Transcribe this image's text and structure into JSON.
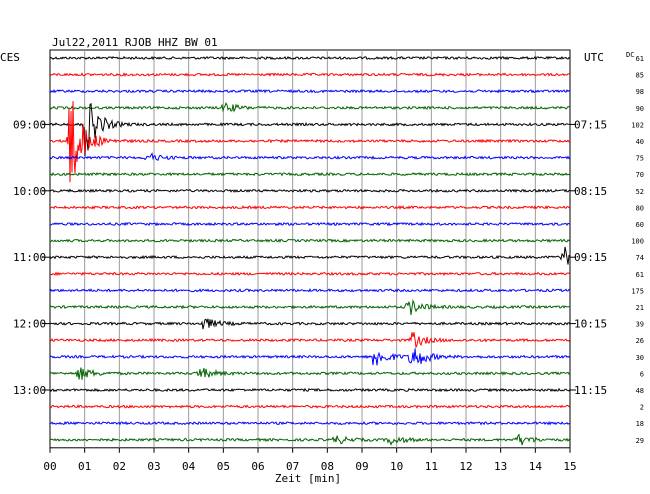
{
  "header": {
    "station_line": "Jul22,2011   RJOB HHZ BW 01",
    "left_zone": "CES",
    "right_zone": "UTC",
    "dc_label": "DC"
  },
  "chart_data": {
    "type": "line",
    "title": "Jul22,2011   RJOB HHZ BW 01",
    "xlabel": "Zeit [min]",
    "ylabel": "",
    "xlim": [
      0,
      15
    ],
    "x_ticks": [
      "00",
      "01",
      "02",
      "03",
      "04",
      "05",
      "06",
      "07",
      "08",
      "09",
      "10",
      "11",
      "12",
      "13",
      "14",
      "15"
    ],
    "grid": true,
    "left_time_labels": [
      {
        "row": 4,
        "text": "09:00"
      },
      {
        "row": 8,
        "text": "10:00"
      },
      {
        "row": 12,
        "text": "11:00"
      },
      {
        "row": 16,
        "text": "12:00"
      },
      {
        "row": 20,
        "text": "13:00"
      }
    ],
    "right_time_labels": [
      {
        "row": 4,
        "text": "07:15"
      },
      {
        "row": 8,
        "text": "08:15"
      },
      {
        "row": 12,
        "text": "09:15"
      },
      {
        "row": 16,
        "text": "10:15"
      },
      {
        "row": 20,
        "text": "11:15"
      }
    ],
    "trace_colors": [
      "#000000",
      "#ff0000",
      "#0000ff",
      "#006400"
    ],
    "dc_offsets": [
      61,
      85,
      98,
      90,
      102,
      40,
      75,
      70,
      52,
      80,
      60,
      100,
      74,
      61,
      175,
      21,
      39,
      26,
      30,
      6,
      48,
      2,
      18,
      29
    ],
    "events": [
      {
        "row": 3,
        "minute": 5.0,
        "amp": 6
      },
      {
        "row": 4,
        "minute": 1.0,
        "amp": 35
      },
      {
        "row": 5,
        "minute": 0.5,
        "amp": 70
      },
      {
        "row": 6,
        "minute": 2.8,
        "amp": 5
      },
      {
        "row": 12,
        "minute": 14.8,
        "amp": 12
      },
      {
        "row": 15,
        "minute": 10.3,
        "amp": 10
      },
      {
        "row": 16,
        "minute": 4.4,
        "amp": 7
      },
      {
        "row": 17,
        "minute": 10.4,
        "amp": 10
      },
      {
        "row": 18,
        "minute": 9.3,
        "amp": 14
      },
      {
        "row": 18,
        "minute": 10.4,
        "amp": 16
      },
      {
        "row": 19,
        "minute": 0.8,
        "amp": 8
      },
      {
        "row": 19,
        "minute": 4.3,
        "amp": 7
      },
      {
        "row": 23,
        "minute": 8.2,
        "amp": 5
      },
      {
        "row": 23,
        "minute": 9.8,
        "amp": 5
      },
      {
        "row": 23,
        "minute": 13.5,
        "amp": 6
      }
    ]
  }
}
